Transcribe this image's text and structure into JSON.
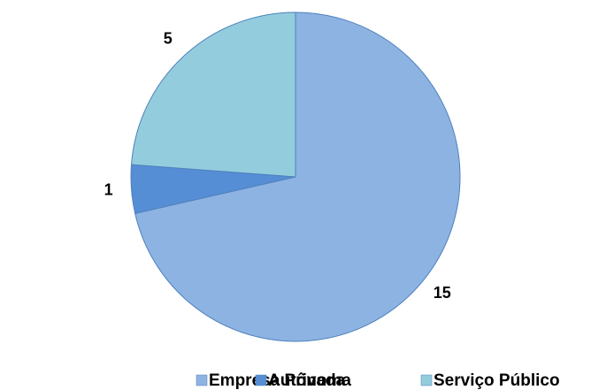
{
  "chart_data": {
    "type": "pie",
    "categories": [
      "Empresa Privada",
      "Autônoma",
      "Serviço Público"
    ],
    "values": [
      15,
      1,
      5
    ],
    "colors": [
      "#8db3e2",
      "#558ed5",
      "#93cddd"
    ],
    "legend": "bottom"
  }
}
